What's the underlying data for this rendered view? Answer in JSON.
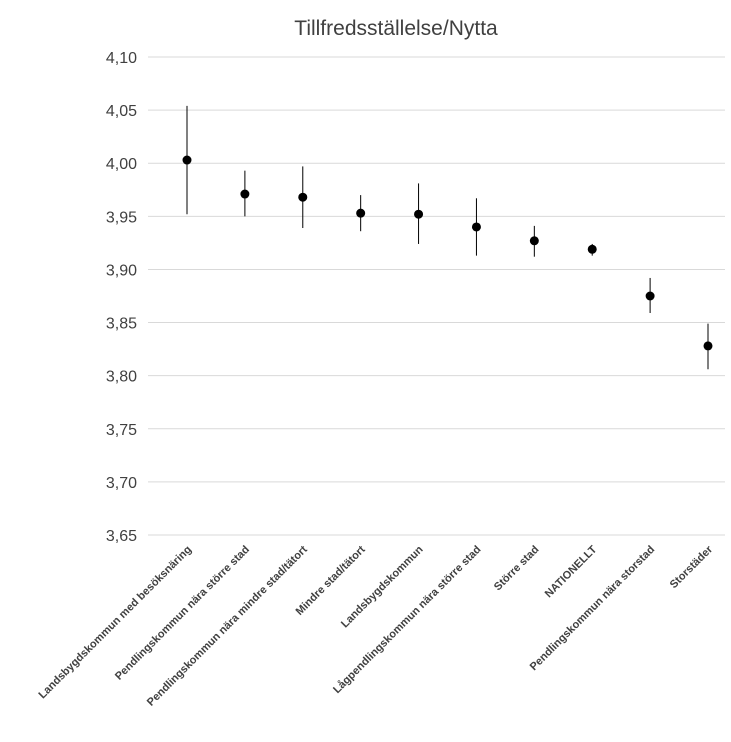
{
  "chart_data": {
    "type": "scatter",
    "title": "Tillfredsställelse/Nytta",
    "xlabel": "",
    "ylabel": "",
    "ylim": [
      3.65,
      4.1
    ],
    "ytick_step": 0.05,
    "ytick_labels": [
      "3,65",
      "3,70",
      "3,75",
      "3,80",
      "3,85",
      "3,90",
      "3,95",
      "4,00",
      "4,05",
      "4,10"
    ],
    "grid": true,
    "legend": "none",
    "categories": [
      "Landsbygdskommun med besöksnäring",
      "Pendlingskommun nära större stad",
      "Pendlingskommun nära mindre stad/tätort",
      "Mindre stad/tätort",
      "Landsbygdskommun",
      "Lågpendlingskommun nära större stad",
      "Större stad",
      "NATIONELLT",
      "Pendlingskommun nära storstad",
      "Storstäder"
    ],
    "series": [
      {
        "values": [
          4.003,
          3.971,
          3.968,
          3.953,
          3.952,
          3.94,
          3.927,
          3.919,
          3.875,
          3.828
        ],
        "lower": [
          3.952,
          3.95,
          3.939,
          3.936,
          3.924,
          3.913,
          3.912,
          3.913,
          3.859,
          3.806
        ],
        "upper": [
          4.054,
          3.993,
          3.997,
          3.97,
          3.981,
          3.967,
          3.941,
          3.924,
          3.892,
          3.849
        ]
      }
    ],
    "colors": {
      "marker": "#000000",
      "error_bar": "#000000",
      "grid": "#d9d9d9",
      "text": "#404040"
    }
  }
}
